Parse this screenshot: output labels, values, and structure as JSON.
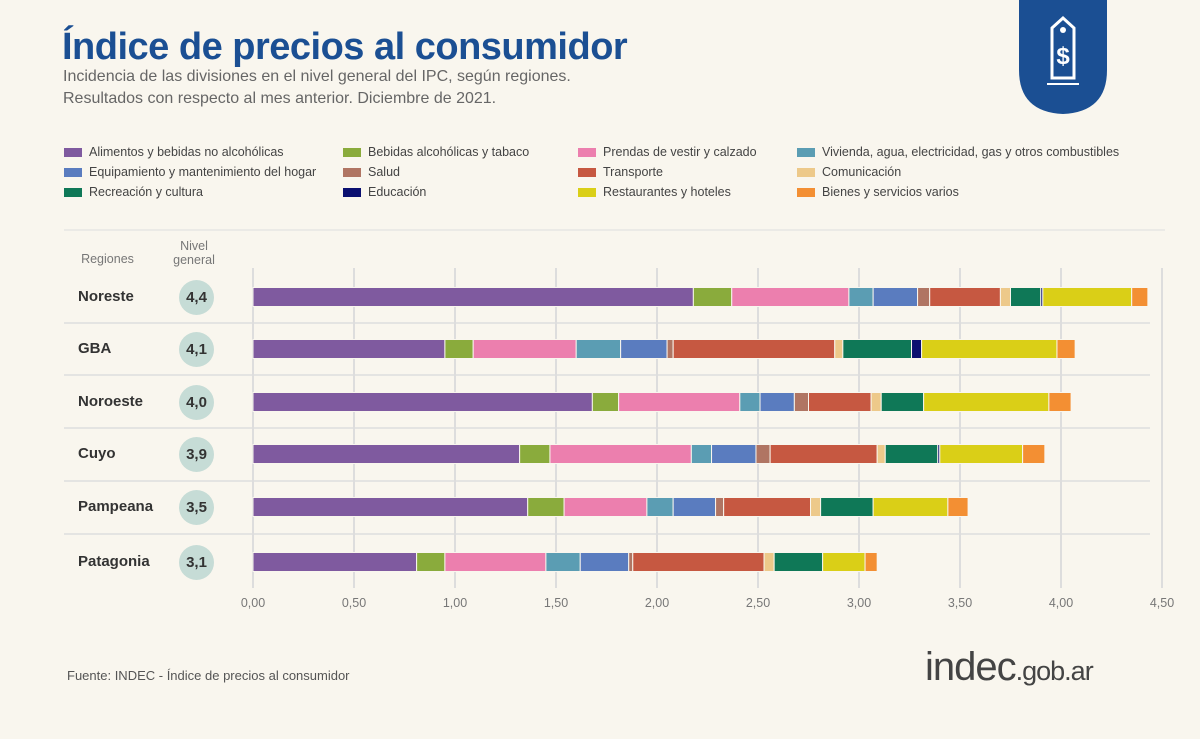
{
  "header": {
    "title": "Índice de precios al consumidor",
    "subtitle1": "Incidencia de las divisiones en el nivel general del IPC, según regiones.",
    "subtitle2": "Resultados con respecto al mes anterior. Diciembre de 2021."
  },
  "logo_icon": "price-tag-dollar-icon",
  "columns": {
    "regions": "Regiones",
    "general": "Nivel general"
  },
  "chart_data": {
    "type": "bar",
    "orientation": "horizontal",
    "stacked": true,
    "xlim": [
      0,
      4.5
    ],
    "x_ticks": [
      "0,00",
      "0,50",
      "1,00",
      "1,50",
      "2,00",
      "2,50",
      "3,00",
      "3,50",
      "4,00",
      "4,50"
    ],
    "grid": true,
    "legend_position": "top",
    "categories": [
      "Noreste",
      "GBA",
      "Noroeste",
      "Cuyo",
      "Pampeana",
      "Patagonia"
    ],
    "nivel_general": [
      "4,4",
      "4,1",
      "4,0",
      "3,9",
      "3,5",
      "3,1"
    ],
    "series": [
      {
        "name": "Alimentos y bebidas no alcohólicas",
        "color": "#7f5a9f",
        "values": [
          2.18,
          0.95,
          1.68,
          1.32,
          1.36,
          0.81
        ]
      },
      {
        "name": "Bebidas alcohólicas y tabaco",
        "color": "#8aab3c",
        "values": [
          0.19,
          0.14,
          0.13,
          0.15,
          0.18,
          0.14
        ]
      },
      {
        "name": "Prendas de vestir y calzado",
        "color": "#ec7fae",
        "values": [
          0.58,
          0.51,
          0.6,
          0.7,
          0.41,
          0.5
        ]
      },
      {
        "name": "Vivienda, agua, electricidad, gas y otros combustibles",
        "color": "#5b9db3",
        "values": [
          0.12,
          0.22,
          0.1,
          0.1,
          0.13,
          0.17
        ]
      },
      {
        "name": "Equipamiento y mantenimiento del hogar",
        "color": "#5a7cbf",
        "values": [
          0.22,
          0.23,
          0.17,
          0.22,
          0.21,
          0.24
        ]
      },
      {
        "name": "Salud",
        "color": "#b07563",
        "values": [
          0.06,
          0.03,
          0.07,
          0.07,
          0.04,
          0.02
        ]
      },
      {
        "name": "Transporte",
        "color": "#c65841",
        "values": [
          0.35,
          0.8,
          0.31,
          0.53,
          0.43,
          0.65
        ]
      },
      {
        "name": "Comunicación",
        "color": "#edc98a",
        "values": [
          0.05,
          0.04,
          0.05,
          0.04,
          0.05,
          0.05
        ]
      },
      {
        "name": "Recreación y cultura",
        "color": "#0f7857",
        "values": [
          0.15,
          0.34,
          0.21,
          0.26,
          0.26,
          0.24
        ]
      },
      {
        "name": "Educación",
        "color": "#0b1070",
        "values": [
          0.01,
          0.05,
          0,
          0.01,
          0,
          0
        ]
      },
      {
        "name": "Restaurantes y hoteles",
        "color": "#dacf17",
        "values": [
          0.44,
          0.67,
          0.62,
          0.41,
          0.37,
          0.21
        ]
      },
      {
        "name": "Bienes y servicios varios",
        "color": "#f38f33",
        "values": [
          0.08,
          0.09,
          0.11,
          0.11,
          0.1,
          0.06
        ]
      }
    ]
  },
  "footer": {
    "source": "Fuente: INDEC - Índice de precios al consumidor",
    "site_main": "indec",
    "site_rest": ".gob.ar"
  }
}
